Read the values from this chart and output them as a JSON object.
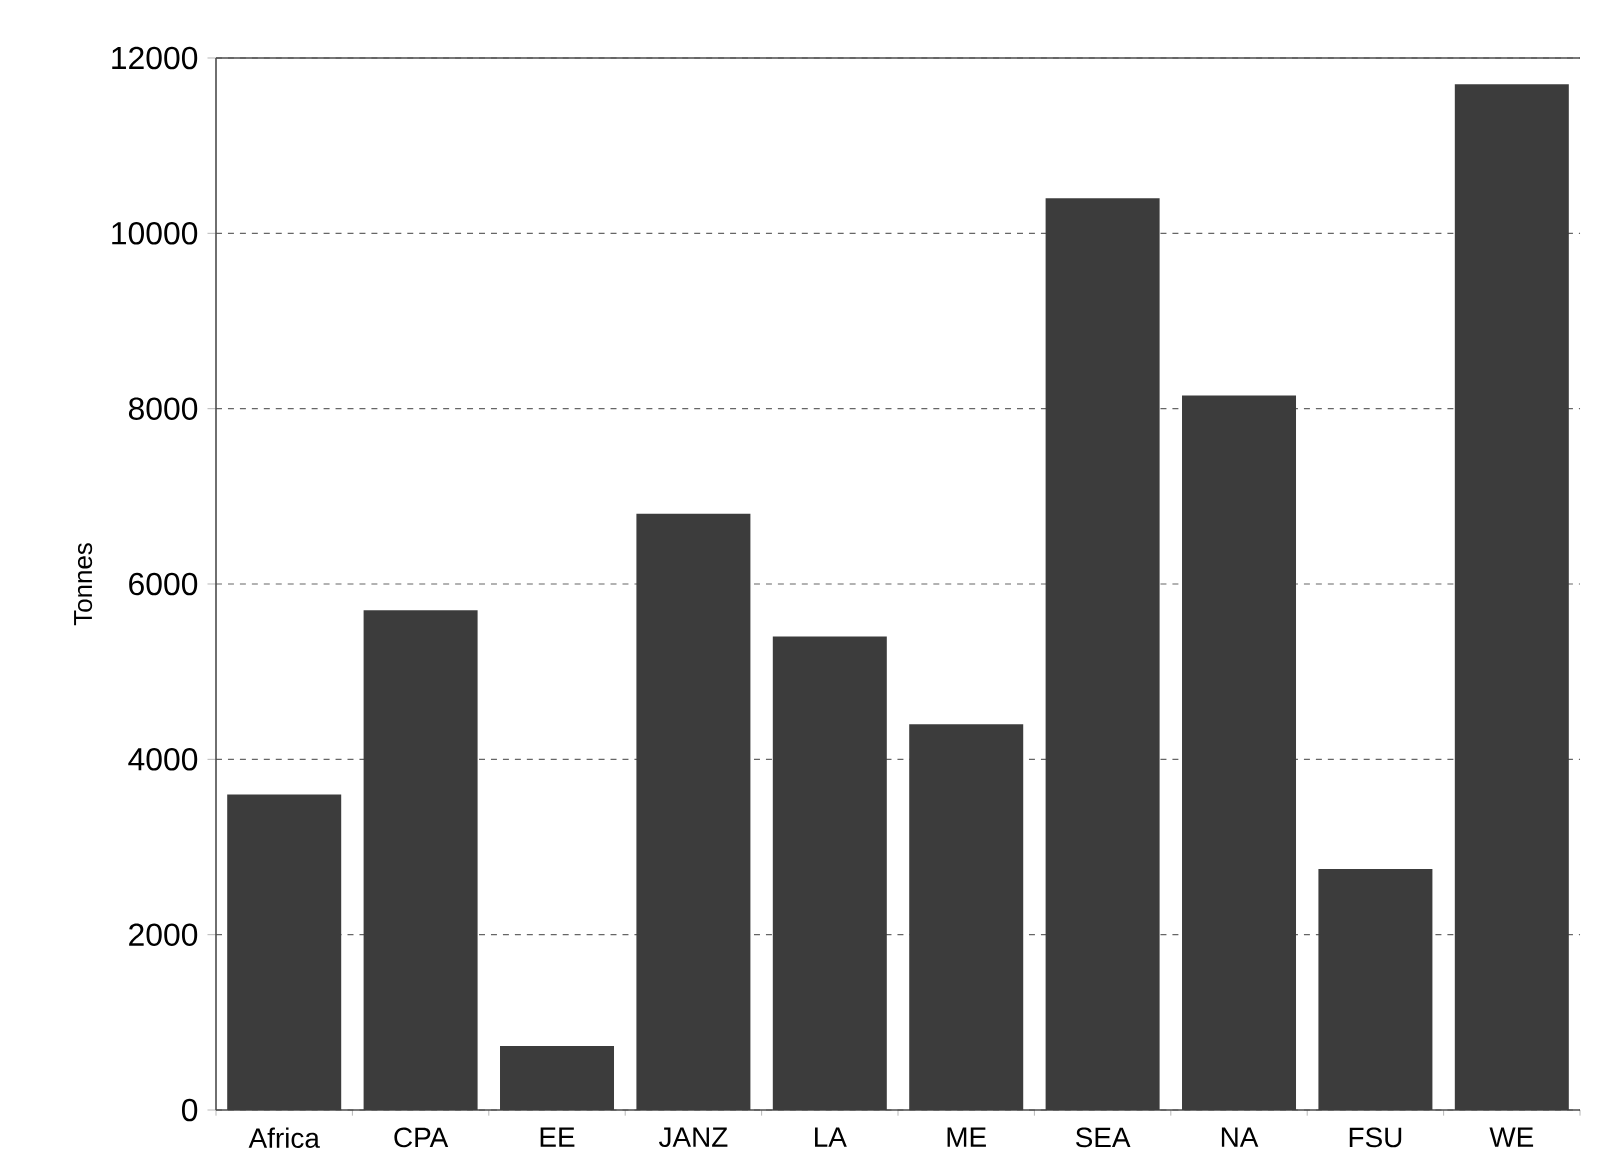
{
  "chart_data": {
    "type": "bar",
    "ylabel": "Tonnes",
    "categories": [
      "Africa",
      "CPA",
      "EE",
      "JANZ",
      "LA",
      "ME",
      "SEA",
      "NA",
      "FSU",
      "WE"
    ],
    "values": [
      3600,
      5700,
      730,
      6800,
      5400,
      4400,
      10400,
      8150,
      2750,
      11700
    ],
    "color": "#3c3c3c",
    "ylim": [
      0,
      12000
    ],
    "yticks": [
      0,
      2000,
      4000,
      6000,
      8000,
      10000,
      12000
    ],
    "grid": "y"
  }
}
